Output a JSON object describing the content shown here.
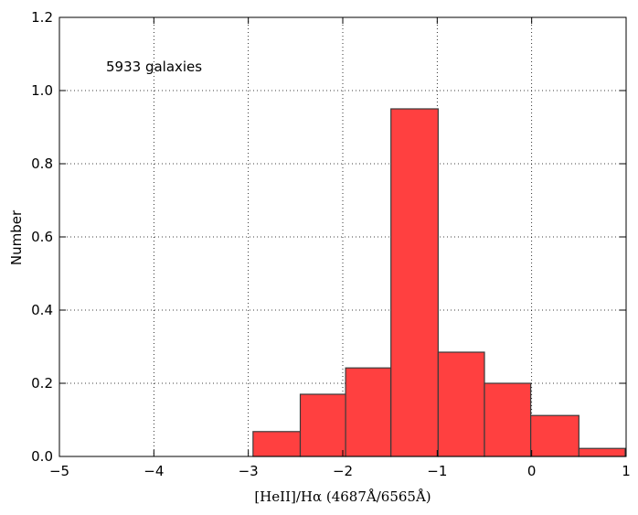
{
  "chart_data": {
    "type": "bar",
    "xlabel": "[HeII]/Hα (4687Å/6565Å)",
    "ylabel": "Number",
    "annotation": "5933 galaxies",
    "xlim": [
      -5,
      1
    ],
    "ylim": [
      0,
      1.2
    ],
    "xticks": [
      -5,
      -4,
      -3,
      -2,
      -1,
      0,
      1
    ],
    "yticks": [
      0.0,
      0.2,
      0.4,
      0.6,
      0.8,
      1.0,
      1.2
    ],
    "xtick_labels": [
      "−5",
      "−4",
      "−3",
      "−2",
      "−1",
      "0",
      "1"
    ],
    "ytick_labels": [
      "0.0",
      "0.2",
      "0.4",
      "0.6",
      "0.8",
      "1.0",
      "1.2"
    ],
    "grid": true,
    "bar_color": "#ff4040",
    "edge_color": "#3a3a3a",
    "bins": [
      {
        "x0": -2.95,
        "x1": -2.45,
        "value": 0.068
      },
      {
        "x0": -2.45,
        "x1": -1.97,
        "value": 0.17
      },
      {
        "x0": -1.97,
        "x1": -1.49,
        "value": 0.242
      },
      {
        "x0": -1.49,
        "x1": -0.99,
        "value": 0.95
      },
      {
        "x0": -0.99,
        "x1": -0.5,
        "value": 0.285
      },
      {
        "x0": -0.5,
        "x1": -0.01,
        "value": 0.2
      },
      {
        "x0": -0.01,
        "x1": 0.5,
        "value": 0.112
      },
      {
        "x0": 0.5,
        "x1": 0.99,
        "value": 0.022
      }
    ]
  }
}
